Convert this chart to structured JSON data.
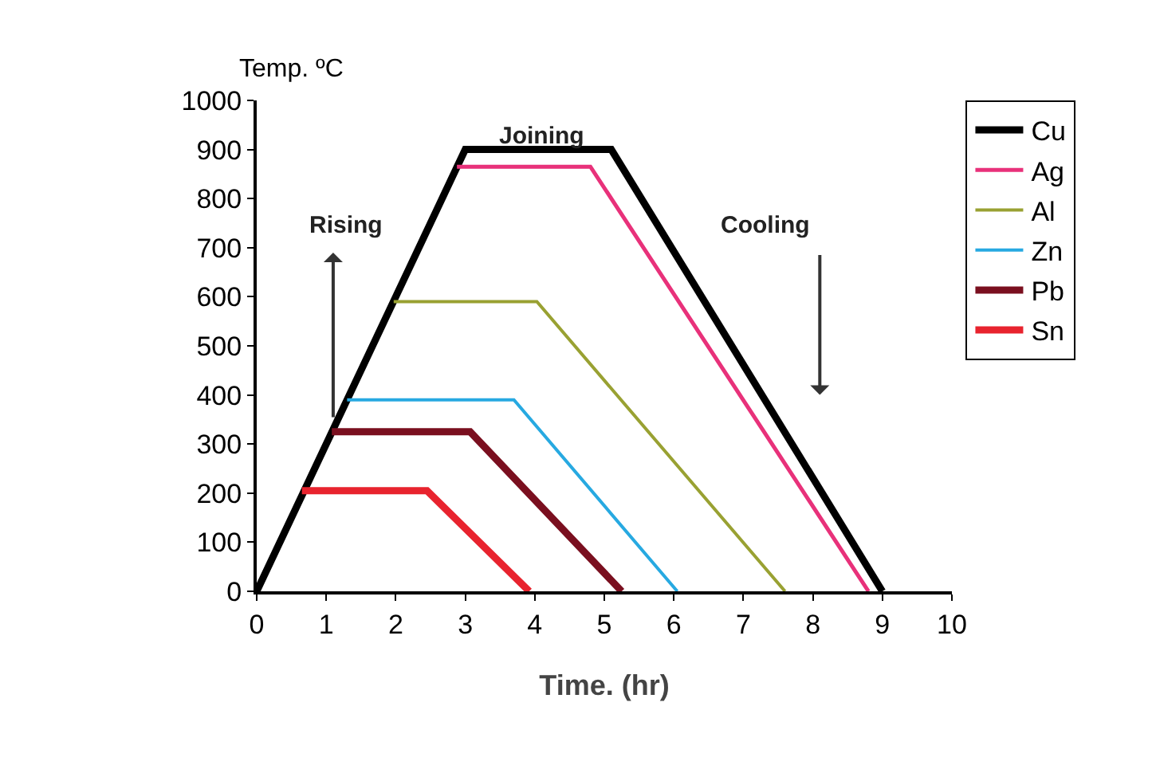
{
  "chart_data": {
    "type": "line",
    "xlabel": "Time. (hr)",
    "ylabel": "Temp. ºC",
    "xlim": [
      0,
      10
    ],
    "xticks": [
      0,
      1,
      2,
      3,
      4,
      5,
      6,
      7,
      8,
      9,
      10
    ],
    "ylim": [
      0,
      1000
    ],
    "yticks": [
      0,
      100,
      200,
      300,
      400,
      500,
      600,
      700,
      800,
      900,
      1000
    ],
    "grid": false,
    "legend": "top right",
    "marker": "none",
    "line_style": "solid",
    "series": [
      {
        "name": "Cu",
        "color": "#000000",
        "x": [
          0,
          3,
          5.1,
          9
        ],
        "values": [
          0,
          900,
          900,
          0
        ]
      },
      {
        "name": "Ag",
        "color": "#e8317a",
        "x": [
          2.88,
          4.8,
          8.8
        ],
        "values": [
          865,
          865,
          0
        ]
      },
      {
        "name": "Al",
        "color": "#99a132",
        "x": [
          1.97,
          4.03,
          7.6
        ],
        "values": [
          590,
          590,
          0
        ]
      },
      {
        "name": "Zn",
        "color": "#27a9e1",
        "x": [
          1.3,
          3.7,
          6.05
        ],
        "values": [
          390,
          390,
          0
        ]
      },
      {
        "name": "Pb",
        "color": "#7a0f1f",
        "x": [
          1.08,
          3.07,
          5.25
        ],
        "values": [
          325,
          325,
          0
        ]
      },
      {
        "name": "Sn",
        "color": "#e8232e",
        "x": [
          0.65,
          2.45,
          3.92
        ],
        "values": [
          205,
          205,
          0
        ]
      }
    ],
    "annotations": [
      "Rising",
      "Joining",
      "Cooling"
    ]
  }
}
